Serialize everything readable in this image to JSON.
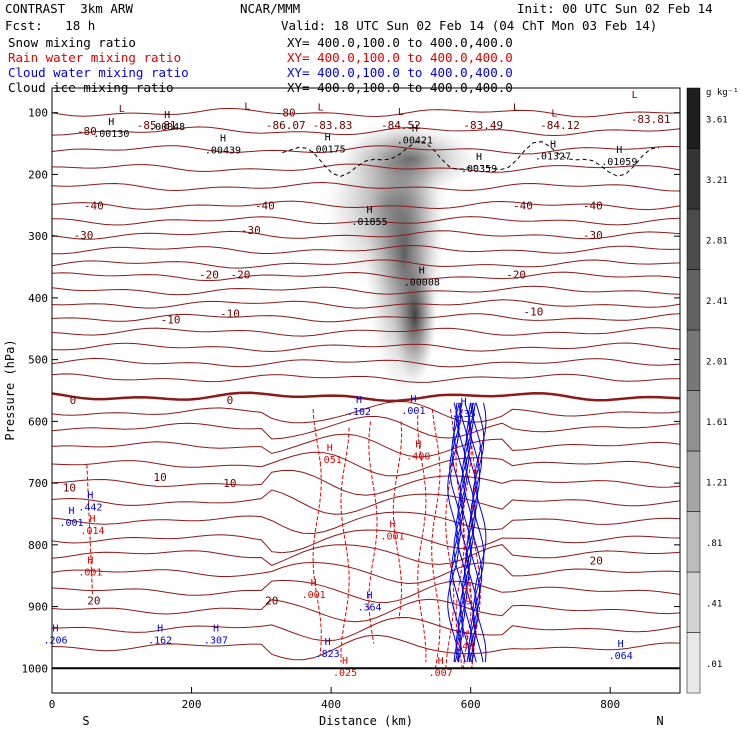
{
  "header": {
    "left1": "CONTRAST  3km ARW",
    "center1": "NCAR/MMM",
    "right1": "Init: 00 UTC Sun 02 Feb 14",
    "left2": "Fcst:   18 h",
    "right2": "Valid: 18 UTC Sun 02 Feb 14 (04 ChT Mon 03 Feb 14)"
  },
  "fields": [
    {
      "name": "Snow mixing ratio",
      "xy": "XY= 400.0,100.0 to 400.0,400.0",
      "color": "#000000"
    },
    {
      "name": "Rain water mixing ratio",
      "xy": "XY= 400.0,100.0 to 400.0,400.0",
      "color": "#e00000"
    },
    {
      "name": "Cloud water mixing ratio",
      "xy": "XY= 400.0,100.0 to 400.0,400.0",
      "color": "#0000e0"
    },
    {
      "name": "Cloud ice mixing ratio",
      "xy": "XY= 400.0,100.0 to 400.0,400.0",
      "color": "#000000"
    }
  ],
  "chart_data": {
    "type": "heatmap",
    "xlabel": "Distance (km)",
    "ylabel": "Pressure (hPa)",
    "xlim": [
      0,
      900
    ],
    "ylim": [
      1040,
      60
    ],
    "x_ticks": [
      0,
      200,
      400,
      600,
      800
    ],
    "y_ticks": [
      100,
      200,
      300,
      400,
      500,
      600,
      700,
      800,
      900,
      1000
    ],
    "x_end_labels": {
      "left": "S",
      "right": "N"
    },
    "colorbar": {
      "unit": "g kg⁻¹",
      "levels": [
        ".01",
        ".41",
        ".81",
        "1.21",
        "1.61",
        "2.01",
        "2.41",
        "2.81",
        "3.21",
        "3.61"
      ]
    },
    "temperature_labels": [
      {
        "x": 150,
        "p": 120,
        "t": "-85.81"
      },
      {
        "x": 335,
        "p": 120,
        "t": "-86.07"
      },
      {
        "x": 402,
        "p": 120,
        "t": "-83.83"
      },
      {
        "x": 500,
        "p": 120,
        "t": "-84.52"
      },
      {
        "x": 618,
        "p": 120,
        "t": "-83.49"
      },
      {
        "x": 728,
        "p": 120,
        "t": "-84.12"
      },
      {
        "x": 858,
        "p": 110,
        "t": "-83.81"
      },
      {
        "x": 50,
        "p": 130,
        "t": "-80"
      },
      {
        "x": 335,
        "p": 100,
        "t": "-80"
      },
      {
        "x": 60,
        "p": 250,
        "t": "-40"
      },
      {
        "x": 305,
        "p": 250,
        "t": "-40"
      },
      {
        "x": 675,
        "p": 250,
        "t": "-40"
      },
      {
        "x": 775,
        "p": 250,
        "t": "-40"
      },
      {
        "x": 45,
        "p": 298,
        "t": "-30"
      },
      {
        "x": 285,
        "p": 290,
        "t": "-30"
      },
      {
        "x": 775,
        "p": 298,
        "t": "-30"
      },
      {
        "x": 225,
        "p": 362,
        "t": "-20"
      },
      {
        "x": 270,
        "p": 362,
        "t": "-20"
      },
      {
        "x": 665,
        "p": 362,
        "t": "-20"
      },
      {
        "x": 170,
        "p": 435,
        "t": "-10"
      },
      {
        "x": 255,
        "p": 425,
        "t": "-10"
      },
      {
        "x": 690,
        "p": 422,
        "t": "-10"
      },
      {
        "x": 30,
        "p": 565,
        "t": "0"
      },
      {
        "x": 255,
        "p": 565,
        "t": "0"
      },
      {
        "x": 155,
        "p": 690,
        "t": "10"
      },
      {
        "x": 255,
        "p": 700,
        "t": "10"
      },
      {
        "x": 25,
        "p": 707,
        "t": "10"
      },
      {
        "x": 60,
        "p": 890,
        "t": "20"
      },
      {
        "x": 315,
        "p": 890,
        "t": "20"
      },
      {
        "x": 780,
        "p": 825,
        "t": "20"
      }
    ],
    "max_labels": [
      {
        "x": 85,
        "p": 130,
        "t": ".00130",
        "c": "k"
      },
      {
        "x": 165,
        "p": 118,
        "t": ".00048",
        "c": "k"
      },
      {
        "x": 245,
        "p": 156,
        "t": ".00439",
        "c": "k"
      },
      {
        "x": 395,
        "p": 155,
        "t": ".00175",
        "c": "k"
      },
      {
        "x": 520,
        "p": 140,
        "t": ".00421",
        "c": "k"
      },
      {
        "x": 612,
        "p": 186,
        "t": ".00359",
        "c": "k"
      },
      {
        "x": 718,
        "p": 166,
        "t": ".01327",
        "c": "k"
      },
      {
        "x": 813,
        "p": 175,
        "t": ".01059",
        "c": "k"
      },
      {
        "x": 455,
        "p": 272,
        "t": ".01855",
        "c": "k"
      },
      {
        "x": 530,
        "p": 370,
        "t": ".00008",
        "c": "k"
      },
      {
        "x": 440,
        "p": 580,
        "t": ".102",
        "c": "b"
      },
      {
        "x": 518,
        "p": 578,
        "t": ".001",
        "c": "b"
      },
      {
        "x": 590,
        "p": 583,
        "t": ".135",
        "c": "b"
      },
      {
        "x": 55,
        "p": 735,
        "t": ".442",
        "c": "b"
      },
      {
        "x": 28,
        "p": 760,
        "t": ".001",
        "c": "b"
      },
      {
        "x": 455,
        "p": 897,
        "t": ".364",
        "c": "b"
      },
      {
        "x": 155,
        "p": 950,
        "t": ".162",
        "c": "b"
      },
      {
        "x": 235,
        "p": 950,
        "t": ".307",
        "c": "b"
      },
      {
        "x": 395,
        "p": 972,
        "t": ".823",
        "c": "b"
      },
      {
        "x": 5,
        "p": 950,
        "t": ".206",
        "c": "b"
      },
      {
        "x": 815,
        "p": 975,
        "t": ".064",
        "c": "b"
      },
      {
        "x": 398,
        "p": 658,
        "t": ".051",
        "c": "r"
      },
      {
        "x": 525,
        "p": 652,
        "t": ".400",
        "c": "r"
      },
      {
        "x": 58,
        "p": 773,
        "t": ".014",
        "c": "r"
      },
      {
        "x": 55,
        "p": 840,
        "t": ".001",
        "c": "r"
      },
      {
        "x": 488,
        "p": 782,
        "t": ".001",
        "c": "r"
      },
      {
        "x": 375,
        "p": 876,
        "t": ".001",
        "c": "r"
      },
      {
        "x": 420,
        "p": 1003,
        "t": ".025",
        "c": "r"
      },
      {
        "x": 557,
        "p": 1003,
        "t": ".007",
        "c": "r"
      },
      {
        "x": 592,
        "p": 887,
        "t": ".9",
        "c": "r"
      },
      {
        "x": 592,
        "p": 960,
        "t": ".40",
        "c": "r"
      }
    ],
    "low_labels": [
      {
        "x": 100,
        "p": 92
      },
      {
        "x": 280,
        "p": 88
      },
      {
        "x": 385,
        "p": 90
      },
      {
        "x": 500,
        "p": 97
      },
      {
        "x": 665,
        "p": 90
      },
      {
        "x": 720,
        "p": 100
      },
      {
        "x": 835,
        "p": 70
      }
    ]
  }
}
